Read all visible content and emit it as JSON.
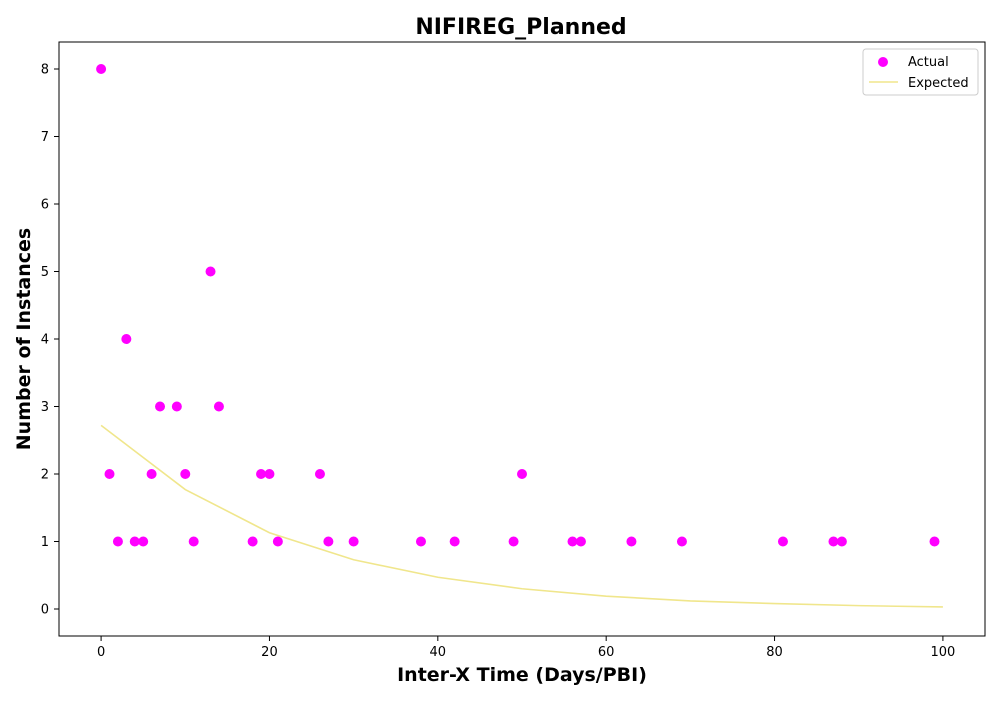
{
  "chart_data": {
    "type": "scatter",
    "title": "NIFIREG_Planned",
    "xlabel": "Inter-X Time (Days/PBI)",
    "ylabel": "Number of Instances",
    "xlim": [
      -5,
      105
    ],
    "ylim": [
      -0.4,
      8.4
    ],
    "xticks": [
      0,
      20,
      40,
      60,
      80,
      100
    ],
    "yticks": [
      0,
      1,
      2,
      3,
      4,
      5,
      6,
      7,
      8
    ],
    "grid": false,
    "legend_position": "top-right",
    "series": [
      {
        "name": "Actual",
        "kind": "scatter",
        "color": "#ff00ff",
        "points": [
          [
            0,
            8
          ],
          [
            1,
            2
          ],
          [
            2,
            1
          ],
          [
            3,
            4
          ],
          [
            4,
            1
          ],
          [
            5,
            1
          ],
          [
            6,
            2
          ],
          [
            7,
            3
          ],
          [
            9,
            3
          ],
          [
            10,
            2
          ],
          [
            11,
            1
          ],
          [
            13,
            5
          ],
          [
            14,
            3
          ],
          [
            18,
            1
          ],
          [
            19,
            2
          ],
          [
            20,
            2
          ],
          [
            21,
            1
          ],
          [
            26,
            2
          ],
          [
            27,
            1
          ],
          [
            30,
            1
          ],
          [
            38,
            1
          ],
          [
            42,
            1
          ],
          [
            49,
            1
          ],
          [
            50,
            2
          ],
          [
            56,
            1
          ],
          [
            57,
            1
          ],
          [
            63,
            1
          ],
          [
            69,
            1
          ],
          [
            81,
            1
          ],
          [
            87,
            1
          ],
          [
            88,
            1
          ],
          [
            99,
            1
          ]
        ]
      },
      {
        "name": "Expected",
        "kind": "line",
        "color": "#f0e68c",
        "points": [
          [
            0,
            2.72
          ],
          [
            10,
            1.77
          ],
          [
            20,
            1.13
          ],
          [
            30,
            0.73
          ],
          [
            40,
            0.47
          ],
          [
            50,
            0.3
          ],
          [
            60,
            0.19
          ],
          [
            70,
            0.12
          ],
          [
            80,
            0.08
          ],
          [
            90,
            0.05
          ],
          [
            100,
            0.03
          ]
        ]
      }
    ]
  }
}
